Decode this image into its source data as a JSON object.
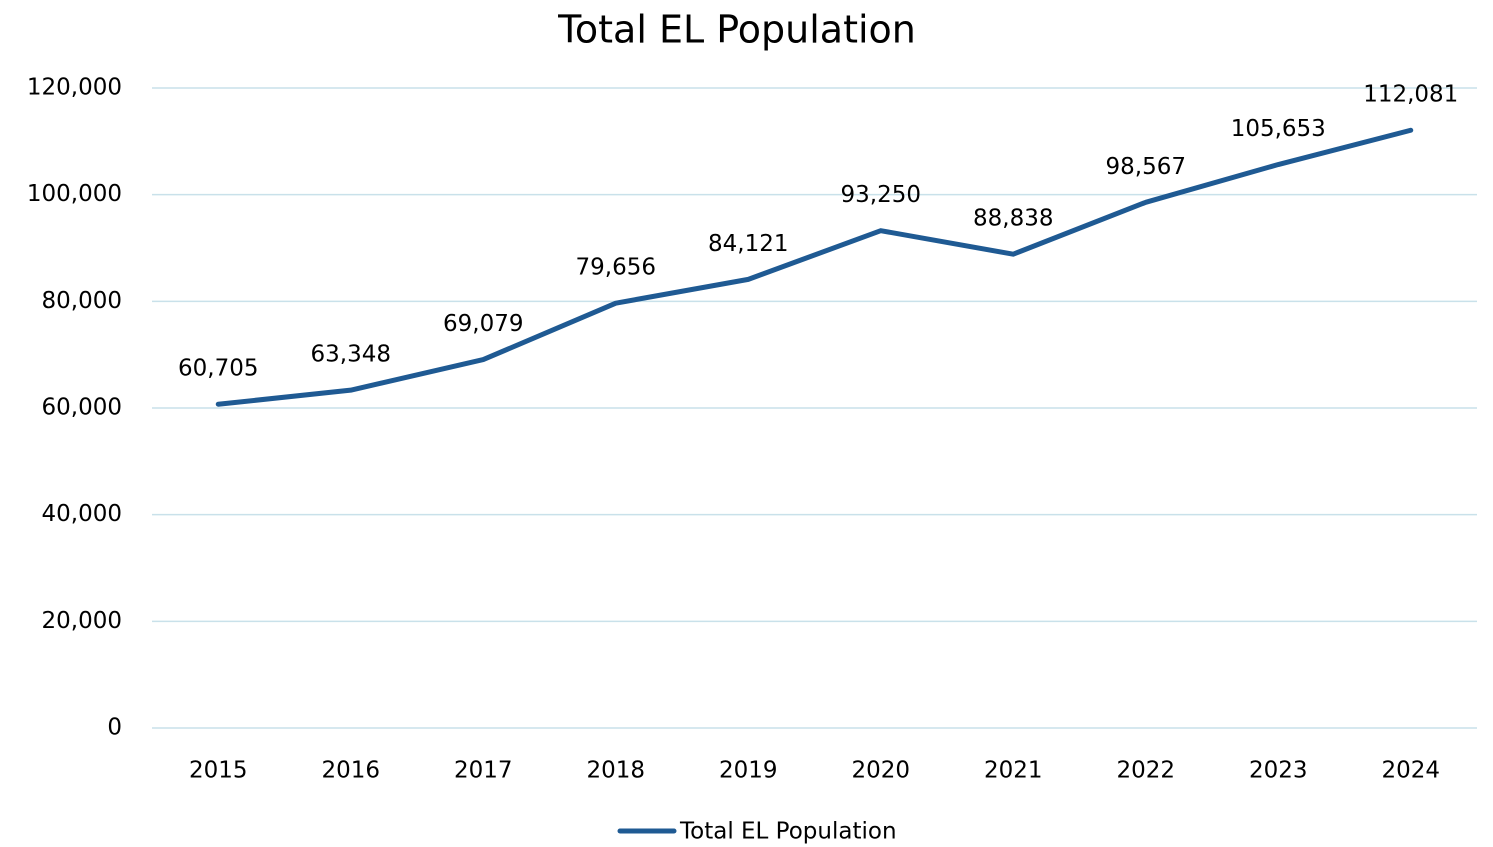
{
  "chart_data": {
    "type": "line",
    "title": "Total EL Population",
    "categories": [
      "2015",
      "2016",
      "2017",
      "2018",
      "2019",
      "2020",
      "2021",
      "2022",
      "2023",
      "2024"
    ],
    "series": [
      {
        "name": "Total EL Population",
        "color": "#1f5a93",
        "values": [
          60705,
          63348,
          69079,
          79656,
          84121,
          93250,
          88838,
          98567,
          105653,
          112081
        ],
        "value_labels": [
          "60,705",
          "63,348",
          "69,079",
          "79,656",
          "84,121",
          "93,250",
          "88,838",
          "98,567",
          "105,653",
          "112,081"
        ]
      }
    ],
    "ylim": [
      0,
      120000
    ],
    "yticks": [
      0,
      {
        "value": 20000,
        "label": "20,000"
      },
      {
        "value": 40000,
        "label": "40,000"
      },
      {
        "value": 60000,
        "label": "60,000"
      },
      {
        "value": 80000,
        "label": "80,000"
      },
      {
        "value": 100000,
        "label": "100,000"
      },
      {
        "value": 120000,
        "label": "120,000"
      }
    ],
    "grid": true,
    "legend": "bottom"
  }
}
